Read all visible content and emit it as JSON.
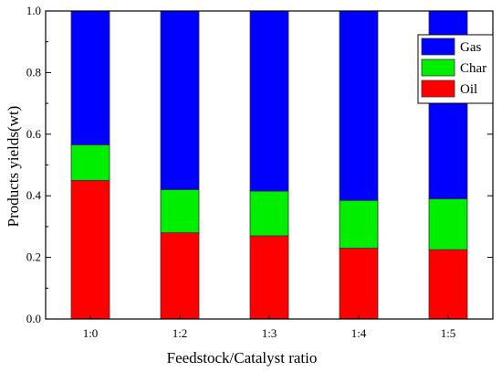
{
  "chart_data": {
    "type": "bar",
    "stacked": true,
    "categories": [
      "1:0",
      "1:2",
      "1:3",
      "1:4",
      "1:5"
    ],
    "series": [
      {
        "name": "Oil",
        "color": "#ff0000",
        "values": [
          0.45,
          0.28,
          0.27,
          0.23,
          0.225
        ]
      },
      {
        "name": "Char",
        "color": "#00ee00",
        "values": [
          0.115,
          0.14,
          0.145,
          0.155,
          0.165
        ]
      },
      {
        "name": "Gas",
        "color": "#0000ff",
        "values": [
          0.435,
          0.58,
          0.585,
          0.615,
          0.61
        ]
      }
    ],
    "xlabel": "Feedstock/Catalyst ratio",
    "ylabel": "Products yields(wt)",
    "ylim": [
      0,
      1.0
    ],
    "yticks": [
      "0.0",
      "0.2",
      "0.4",
      "0.6",
      "0.8",
      "1.0"
    ],
    "legend_position": "top-right"
  }
}
